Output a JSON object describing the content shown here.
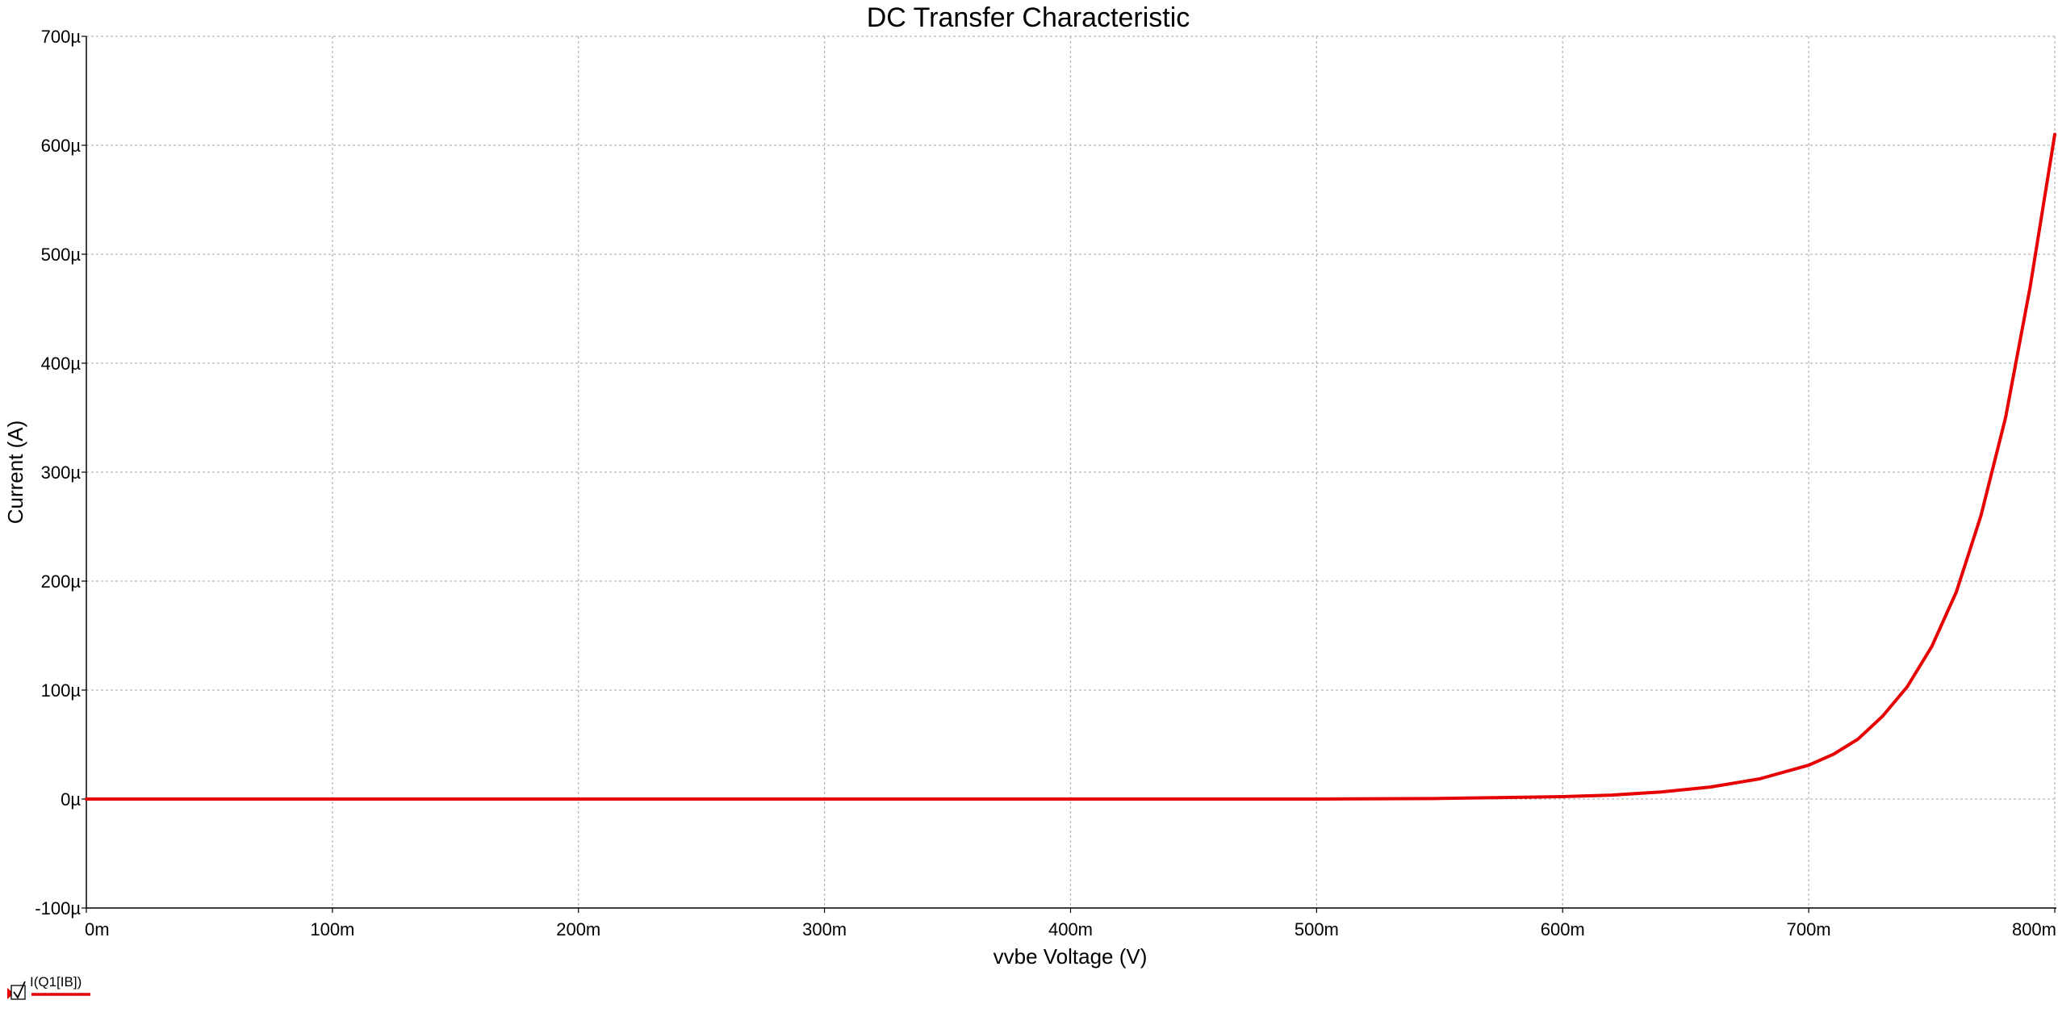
{
  "chart_data": {
    "type": "line",
    "title": "DC Transfer Characteristic",
    "xlabel": "vvbe Voltage (V)",
    "ylabel": "Current (A)",
    "xlim": [
      0,
      0.8
    ],
    "ylim": [
      -0.0001,
      0.0007
    ],
    "grid": true,
    "legend_position": "bottom-left",
    "x_ticks": [
      {
        "value": 0.0,
        "label": "0m"
      },
      {
        "value": 0.1,
        "label": "100m"
      },
      {
        "value": 0.2,
        "label": "200m"
      },
      {
        "value": 0.3,
        "label": "300m"
      },
      {
        "value": 0.4,
        "label": "400m"
      },
      {
        "value": 0.5,
        "label": "500m"
      },
      {
        "value": 0.6,
        "label": "600m"
      },
      {
        "value": 0.7,
        "label": "700m"
      },
      {
        "value": 0.8,
        "label": "800m"
      }
    ],
    "y_ticks": [
      {
        "value": -0.0001,
        "label": "-100µ"
      },
      {
        "value": 0.0,
        "label": "0µ"
      },
      {
        "value": 0.0001,
        "label": "100µ"
      },
      {
        "value": 0.0002,
        "label": "200µ"
      },
      {
        "value": 0.0003,
        "label": "300µ"
      },
      {
        "value": 0.0004,
        "label": "400µ"
      },
      {
        "value": 0.0005,
        "label": "500µ"
      },
      {
        "value": 0.0006,
        "label": "600µ"
      },
      {
        "value": 0.0007,
        "label": "700µ"
      }
    ],
    "series": [
      {
        "name": "I(Q1[IB])",
        "color": "#e60000",
        "x": [
          0.0,
          0.1,
          0.2,
          0.3,
          0.4,
          0.5,
          0.55,
          0.6,
          0.62,
          0.64,
          0.66,
          0.68,
          0.7,
          0.71,
          0.72,
          0.73,
          0.74,
          0.75,
          0.76,
          0.77,
          0.78,
          0.79,
          0.8
        ],
        "values": [
          0.0,
          0.0,
          0.0,
          0.0,
          0.0,
          0.0,
          5e-07,
          2.2e-06,
          3.6e-06,
          6.5e-06,
          1.1e-05,
          1.85e-05,
          3.1e-05,
          4.1e-05,
          5.5e-05,
          7.6e-05,
          0.000103,
          0.00014,
          0.00019,
          0.00026,
          0.00035,
          0.00047,
          0.00061
        ]
      }
    ]
  }
}
